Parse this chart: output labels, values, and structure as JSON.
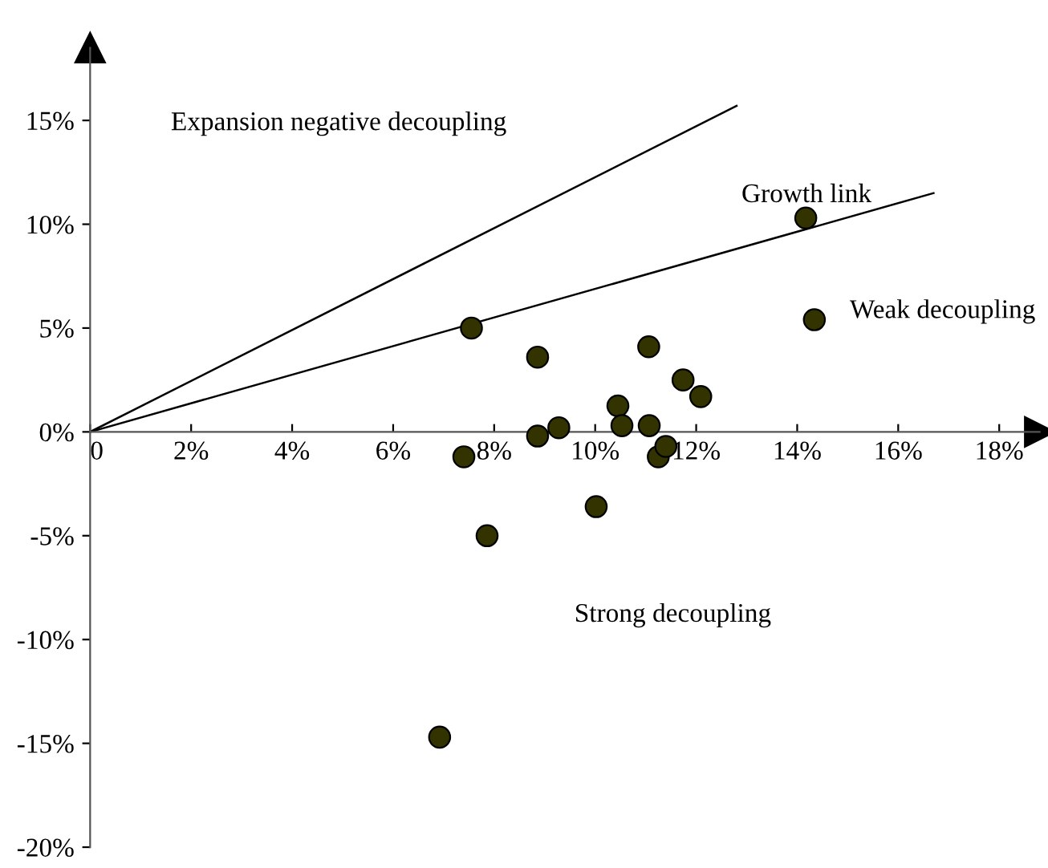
{
  "chart_data": {
    "type": "scatter",
    "series": [
      {
        "color": "#333300",
        "marker": "circle",
        "x": [
          7.4,
          7.55,
          7.86,
          8.86,
          8.86,
          9.28,
          10.02,
          10.45,
          10.53,
          11.06,
          11.07,
          11.25,
          11.4,
          11.74,
          12.09,
          14.17,
          14.34,
          6.92
        ],
        "values": [
          -1.2,
          5.0,
          -5.0,
          3.6,
          -0.2,
          0.2,
          -3.6,
          1.25,
          0.3,
          4.1,
          0.3,
          -1.2,
          -0.7,
          2.5,
          1.7,
          10.3,
          5.4,
          -14.7
        ]
      },
      {
        "type": "line",
        "color": "#000000",
        "x": [
          0,
          12.8
        ],
        "values": [
          0,
          15.7
        ]
      },
      {
        "type": "line",
        "color": "#000000",
        "x": [
          0,
          16.7
        ],
        "values": [
          0,
          11.5
        ]
      }
    ],
    "xlim": [
      0,
      18.8
    ],
    "ylim": [
      -20,
      18.5
    ],
    "xticks": [
      0,
      {
        "value": 2,
        "label": "2%"
      },
      {
        "value": 4,
        "label": "4%"
      },
      {
        "value": 6,
        "label": "6%"
      },
      {
        "value": 8,
        "label": "8%"
      },
      {
        "value": 10,
        "label": "10%"
      },
      {
        "value": 12,
        "label": "12%"
      },
      {
        "value": 14,
        "label": "14%"
      },
      {
        "value": 16,
        "label": "16%"
      },
      {
        "value": 18,
        "label": "18%"
      }
    ],
    "yticks": [
      {
        "value": -20,
        "label": "-20%"
      },
      {
        "value": -15,
        "label": "-15%"
      },
      {
        "value": -10,
        "label": "-10%"
      },
      {
        "value": -5,
        "label": "-5%"
      },
      {
        "value": 0,
        "label": "0%"
      },
      {
        "value": 5,
        "label": "5%"
      },
      {
        "value": 10,
        "label": "10%"
      },
      {
        "value": 15,
        "label": "15%"
      }
    ],
    "annotations": [
      "Expansion negative decoupling",
      "Growth link",
      "Weak decoupling",
      "Strong decoupling"
    ]
  }
}
